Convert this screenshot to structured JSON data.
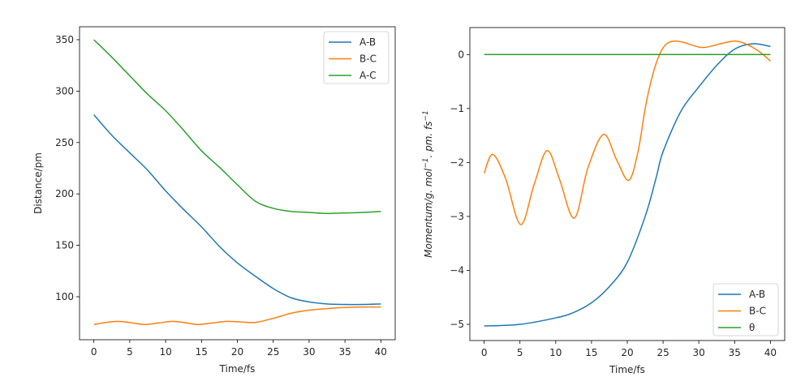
{
  "chart_data": [
    {
      "type": "line",
      "xlabel": "Time/fs",
      "ylabel": "Distance/pm",
      "xlim": [
        -2,
        42
      ],
      "ylim": [
        58.2,
        362.6
      ],
      "xticks": [
        0,
        5,
        10,
        15,
        20,
        25,
        30,
        35,
        40
      ],
      "yticks": [
        100,
        150,
        200,
        250,
        300,
        350
      ],
      "legend": "top-right",
      "grid": false,
      "series": [
        {
          "name": "A-B",
          "color": "#1f77b4",
          "x": [
            0,
            2.5,
            5,
            7.5,
            10,
            12.5,
            15,
            17.5,
            20,
            22.5,
            25,
            27.5,
            30,
            32.5,
            35,
            37.5,
            40
          ],
          "y": [
            277,
            257,
            240,
            223,
            203,
            185,
            168,
            149,
            133,
            120,
            108,
            99,
            95,
            93,
            92.5,
            92.5,
            93
          ]
        },
        {
          "name": "B-C",
          "color": "#ff7f0e",
          "x": [
            0,
            1.6,
            3.3,
            5,
            7,
            9,
            11,
            13,
            14.5,
            16.5,
            18.5,
            20.5,
            22.5,
            25,
            27.5,
            30,
            32.5,
            35,
            37.5,
            40
          ],
          "y": [
            73,
            75,
            76,
            75,
            73,
            74.5,
            76,
            74.5,
            73,
            74.5,
            76,
            75.5,
            75,
            79,
            84,
            87,
            88.5,
            89.5,
            90,
            90
          ]
        },
        {
          "name": "A-C",
          "color": "#2ca02c",
          "x": [
            0,
            2.5,
            5,
            7.5,
            10,
            12.5,
            15,
            17.5,
            20,
            22.5,
            25,
            27.5,
            30,
            32.5,
            35,
            37.5,
            40
          ],
          "y": [
            350,
            333,
            315,
            297,
            281,
            262,
            242,
            226,
            209,
            193,
            186,
            183,
            182,
            181,
            181.5,
            182,
            183
          ]
        }
      ]
    },
    {
      "type": "line",
      "xlabel": "Time/fs",
      "ylabel_parts": [
        "Momentum/g. mol",
        "−1",
        ". pm. fs",
        "−1"
      ],
      "xlim": [
        -2,
        42
      ],
      "ylim": [
        -5.3,
        0.5
      ],
      "xticks": [
        0,
        5,
        10,
        15,
        20,
        25,
        30,
        35,
        40
      ],
      "yticks": [
        0,
        -1,
        -2,
        -3,
        -4,
        -5
      ],
      "ytick_labels": [
        "0",
        "−1",
        "−2",
        "−3",
        "−4",
        "−5"
      ],
      "legend": "bottom-right",
      "grid": false,
      "series": [
        {
          "name": "A-B",
          "color": "#1f77b4",
          "x": [
            0,
            5,
            10,
            12.5,
            15,
            17.5,
            20,
            22.5,
            24,
            25,
            27.5,
            30,
            32.5,
            35,
            37.5,
            40
          ],
          "y": [
            -5.03,
            -5.0,
            -4.88,
            -4.78,
            -4.6,
            -4.3,
            -3.85,
            -3.0,
            -2.3,
            -1.8,
            -1.05,
            -0.6,
            -0.2,
            0.1,
            0.2,
            0.15
          ]
        },
        {
          "name": "B-C",
          "color": "#ff7f0e",
          "x": [
            0,
            1.2,
            3,
            5.1,
            7,
            8.8,
            10.5,
            12.6,
            14.5,
            16.7,
            18.5,
            20.2,
            21.5,
            22.5,
            23.5,
            24.5,
            25.5,
            26.7,
            28,
            30.5,
            33,
            35,
            36.5,
            38.5,
            40
          ],
          "y": [
            -2.2,
            -1.85,
            -2.3,
            -3.15,
            -2.4,
            -1.78,
            -2.3,
            -3.03,
            -2.1,
            -1.48,
            -1.95,
            -2.33,
            -1.8,
            -1.0,
            -0.4,
            0.0,
            0.2,
            0.25,
            0.22,
            0.13,
            0.2,
            0.25,
            0.2,
            0.05,
            -0.12
          ]
        },
        {
          "name": "θ",
          "color": "#2ca02c",
          "x": [
            0,
            40
          ],
          "y": [
            0,
            0
          ]
        }
      ]
    }
  ]
}
